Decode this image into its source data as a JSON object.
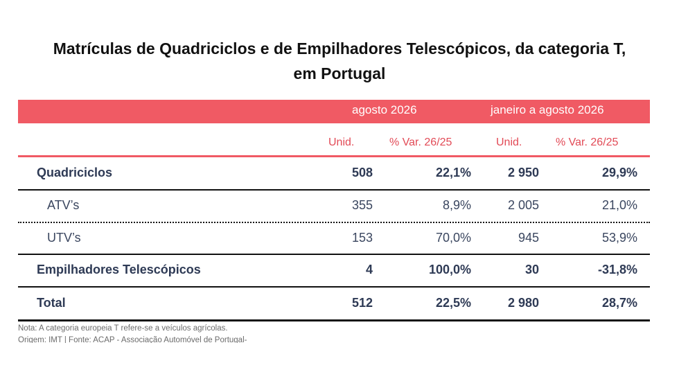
{
  "title": {
    "line1": "Matrículas de Quadriciclos e de Empilhadores Telescópicos, da categoria T,",
    "line2": "em Portugal"
  },
  "header": {
    "period1": "agosto 2026",
    "period2": "janeiro a agosto 2026",
    "units": "Unid.",
    "var": "% Var. 26/25"
  },
  "rows": [
    {
      "label": "Quadriciclos",
      "u1": "508",
      "p1": "22,1%",
      "u2": "2 950",
      "p2": "29,9%"
    },
    {
      "label": "ATV’s",
      "u1": "355",
      "p1": "8,9%",
      "u2": "2 005",
      "p2": "21,0%"
    },
    {
      "label": "UTV’s",
      "u1": "153",
      "p1": "70,0%",
      "u2": "945",
      "p2": "53,9%"
    },
    {
      "label": "Empilhadores Telescópicos",
      "u1": "4",
      "p1": "100,0%",
      "u2": "30",
      "p2": "-31,8%"
    },
    {
      "label": "Total",
      "u1": "512",
      "p1": "22,5%",
      "u2": "2 980",
      "p2": "28,7%"
    }
  ],
  "notes": {
    "nota": "Nota: A categoria europeia T refere-se a veículos agrícolas.",
    "origem": "Origem: IMT | Fonte: ACAP - Associação Automóvel de Portugal-"
  },
  "colors": {
    "accent": "#f05a64",
    "text": "#2e3a55"
  }
}
